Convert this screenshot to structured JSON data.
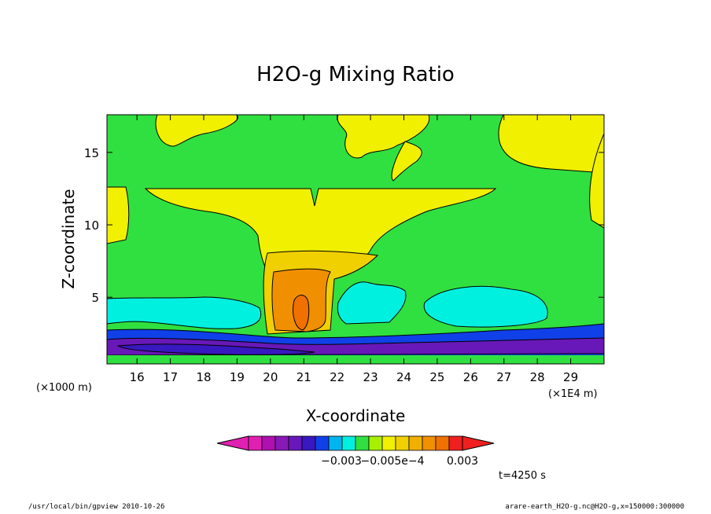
{
  "chart_data": {
    "type": "contour",
    "title": "H2O-g Mixing Ratio",
    "xlabel": "X-coordinate",
    "ylabel": "Z-coordinate",
    "x_unit_label": "(×1E4 m)",
    "y_unit_label": "(×1000 m)",
    "xlim": [
      15.1,
      30.0
    ],
    "ylim": [
      0.4,
      17.6
    ],
    "xticks": [
      "16",
      "17",
      "18",
      "19",
      "20",
      "21",
      "22",
      "23",
      "24",
      "25",
      "26",
      "27",
      "28",
      "29"
    ],
    "yticks": [
      "5",
      "10",
      "15"
    ],
    "time_label": "t=4250 s",
    "colorbar": {
      "colors": [
        "#e020b0",
        "#b010b0",
        "#8818b8",
        "#6818b8",
        "#3818c0",
        "#1040e8",
        "#00b4f0",
        "#00f0e0",
        "#30e040",
        "#a8f000",
        "#f0f000",
        "#f0d000",
        "#f0b000",
        "#f09000",
        "#f07000",
        "#f02020"
      ],
      "tick_labels": [
        "−0.003",
        "−0.005e−4",
        "0.003"
      ]
    },
    "regions": [
      {
        "level": "green",
        "color": "#30e040",
        "desc": "background mixing ratio"
      },
      {
        "level": "yellow-green",
        "color": "#f0f000",
        "desc": "upper layer near z=12 km and plumes"
      },
      {
        "level": "yellow",
        "color": "#f0d000",
        "desc": "anvil"
      },
      {
        "level": "orange",
        "color": "#f09000",
        "desc": "updraft core near x=21, z=4"
      },
      {
        "level": "red",
        "color": "#f07000",
        "desc": "core maximum"
      },
      {
        "level": "cyan",
        "color": "#00f0e0",
        "desc": "lower layer near z=3-4 km"
      },
      {
        "level": "blue",
        "color": "#1040e8",
        "desc": "boundary layer near z=1-2 km"
      },
      {
        "level": "purple",
        "color": "#6818b8",
        "desc": "surface minimum"
      }
    ]
  },
  "footer": {
    "left": "/usr/local/bin/gpview  2010-10-26",
    "right": "arare-earth_H2O-g.nc@H2O-g,x=150000:300000"
  },
  "colors": {
    "frame": "#000000",
    "background": "#ffffff"
  }
}
